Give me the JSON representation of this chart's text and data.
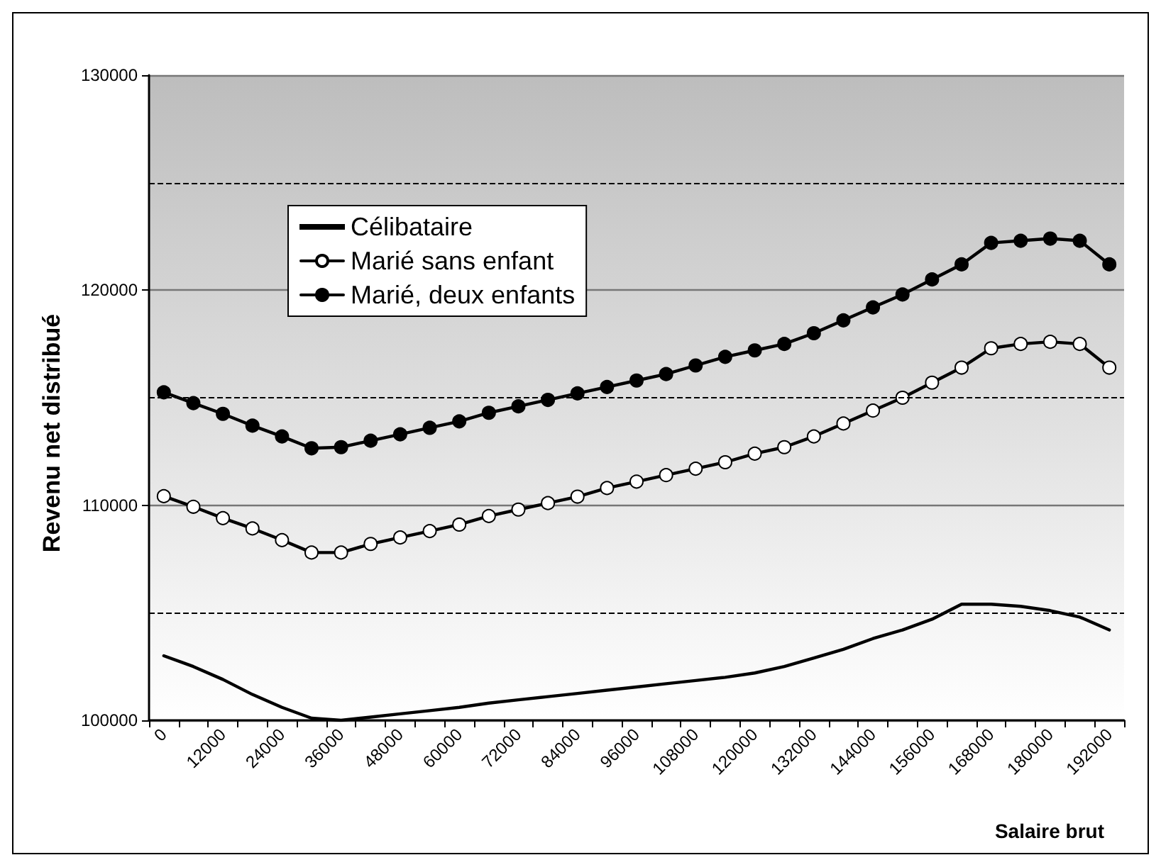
{
  "chart_data": {
    "type": "line",
    "xlabel": "Salaire brut",
    "ylabel": "Revenu net distribué",
    "categories": [
      "0",
      null,
      "12000",
      null,
      "24000",
      null,
      "36000",
      null,
      "48000",
      null,
      "60000",
      null,
      "72000",
      null,
      "84000",
      null,
      "96000",
      null,
      "108000",
      null,
      "120000",
      null,
      "132000",
      null,
      "144000",
      null,
      "156000",
      null,
      "168000",
      null,
      "180000",
      null,
      "192000"
    ],
    "series": [
      {
        "name": "Célibataire",
        "color": "#000000",
        "marker": "none",
        "values": [
          103000,
          102500,
          101900,
          101200,
          100600,
          100100,
          100000,
          100150,
          100300,
          100450,
          100600,
          100800,
          100950,
          101100,
          101250,
          101400,
          101550,
          101700,
          101850,
          102000,
          102200,
          102500,
          102900,
          103300,
          103800,
          104200,
          104700,
          105400,
          105400,
          105300,
          105100,
          104800,
          104200
        ]
      },
      {
        "name": "Marié sans enfant",
        "color": "#000000",
        "marker": "open-circle",
        "values": [
          110420,
          109930,
          109400,
          108920,
          108380,
          107800,
          107800,
          108200,
          108500,
          108800,
          109100,
          109500,
          109800,
          110100,
          110400,
          110800,
          111100,
          111400,
          111700,
          112000,
          112400,
          112700,
          113200,
          113800,
          114400,
          115000,
          115700,
          116400,
          117300,
          117500,
          117600,
          117500,
          116400
        ]
      },
      {
        "name": "Marié, deux enfants",
        "color": "#000000",
        "marker": "circle",
        "values": [
          115250,
          114750,
          114250,
          113700,
          113200,
          112650,
          112700,
          113000,
          113300,
          113600,
          113900,
          114300,
          114600,
          114900,
          115200,
          115500,
          115800,
          116100,
          116500,
          116900,
          117200,
          117500,
          118000,
          118600,
          119200,
          119800,
          120500,
          121200,
          122200,
          122300,
          122400,
          122300,
          121200
        ]
      }
    ],
    "ylim": [
      100000,
      130000
    ],
    "yticks": [
      100000,
      110000,
      120000,
      130000
    ],
    "grid": "y",
    "ref_lines": [
      {
        "axis": "y",
        "value": 105000,
        "line_style": "dashed",
        "color": "#000000"
      },
      {
        "axis": "y",
        "value": 115000,
        "line_style": "dashed",
        "color": "#000000"
      },
      {
        "axis": "y",
        "value": 125000,
        "line_style": "dashed",
        "color": "#000000"
      }
    ],
    "legend": "top left",
    "line_style": "solid"
  }
}
